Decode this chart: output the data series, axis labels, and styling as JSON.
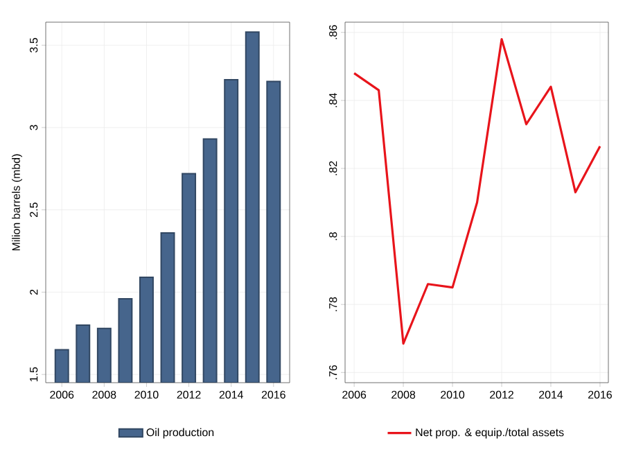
{
  "chart_data": [
    {
      "type": "bar",
      "x": [
        2006,
        2007,
        2008,
        2009,
        2010,
        2011,
        2012,
        2013,
        2014,
        2015,
        2016
      ],
      "series": [
        {
          "name": "Oil production",
          "color": "#46658c",
          "values": [
            1.65,
            1.8,
            1.78,
            1.96,
            2.09,
            2.36,
            2.72,
            2.93,
            3.29,
            3.58,
            3.28
          ]
        }
      ],
      "ylabel": "Milion barrels (mbd)",
      "xlim": [
        2005.24,
        2016.76
      ],
      "ylim": [
        1.45,
        3.64
      ],
      "xticks": [
        2006,
        2008,
        2010,
        2012,
        2014,
        2016
      ],
      "yticks": [
        1.5,
        2,
        2.5,
        3,
        3.5
      ],
      "grid": true,
      "legend": "bottom"
    },
    {
      "type": "line",
      "x": [
        2006,
        2007,
        2008,
        2009,
        2010,
        2011,
        2012,
        2013,
        2014,
        2015,
        2016
      ],
      "series": [
        {
          "name": "Net prop. & equip./total assets",
          "color": "#e8141b",
          "values": [
            0.848,
            0.843,
            0.7685,
            0.786,
            0.785,
            0.81,
            0.858,
            0.833,
            0.844,
            0.813,
            0.8265
          ]
        }
      ],
      "xlim": [
        2005.63,
        2016.34
      ],
      "ylim": [
        0.757,
        0.863
      ],
      "xticks": [
        2006,
        2008,
        2010,
        2012,
        2014,
        2016
      ],
      "yticks": [
        {
          "value": 0.76,
          "label": ".76"
        },
        {
          "value": 0.78,
          "label": ".78"
        },
        {
          "value": 0.8,
          "label": ".8"
        },
        {
          "value": 0.82,
          "label": ".82"
        },
        {
          "value": 0.84,
          "label": ".84"
        },
        {
          "value": 0.86,
          "label": ".86"
        }
      ],
      "grid": true,
      "legend": "bottom"
    }
  ]
}
